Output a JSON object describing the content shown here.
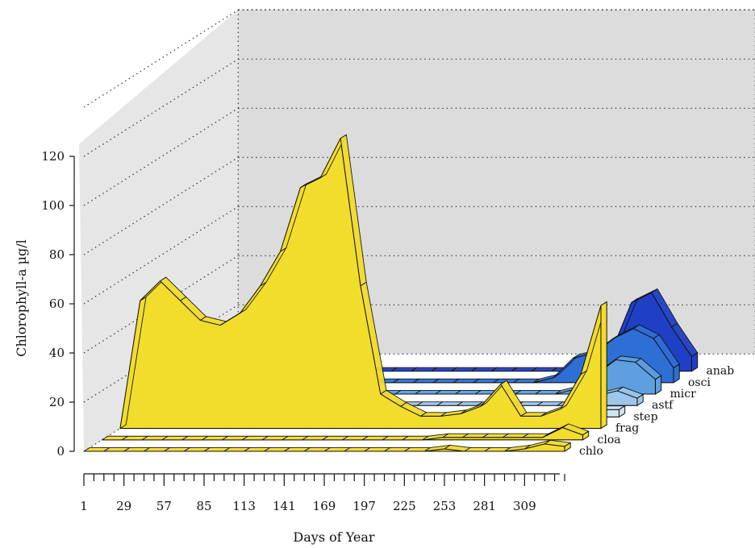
{
  "chart_data": {
    "type": "area",
    "render": "3d-ribbon",
    "title": "",
    "xlabel": "Days of Year",
    "ylabel": "Chlorophyll-a µg/l",
    "xlim": [
      1,
      337
    ],
    "ylim": [
      0,
      120
    ],
    "y_ticks": [
      0,
      20,
      40,
      60,
      80,
      100,
      120
    ],
    "x_ticks": [
      1,
      29,
      57,
      85,
      113,
      141,
      169,
      197,
      225,
      253,
      281,
      309
    ],
    "x_minor_step": 7,
    "grid": true,
    "legend": "labels at right end of each ribbon",
    "x": [
      1,
      15,
      29,
      43,
      57,
      71,
      85,
      99,
      113,
      127,
      141,
      155,
      169,
      183,
      197,
      211,
      225,
      239,
      253,
      267,
      281,
      295,
      309,
      323,
      337
    ],
    "series": [
      {
        "name": "chlo",
        "color": "#f2dc2c",
        "values": [
          0,
          0,
          0,
          0,
          0,
          0,
          0,
          0,
          0,
          0,
          0,
          0,
          0,
          0,
          0,
          0,
          0,
          0,
          1,
          0,
          0,
          0,
          1,
          3,
          2
        ]
      },
      {
        "name": "cloa",
        "color": "#f2dc2c",
        "values": [
          0,
          0,
          0,
          0,
          0,
          0,
          0,
          0,
          0,
          0,
          0,
          0,
          0,
          0,
          0,
          0,
          0,
          1,
          1,
          1,
          1,
          1,
          1,
          5,
          2
        ]
      },
      {
        "name": "frag",
        "color": "#f2dc2c",
        "values": [
          0,
          52,
          60,
          52,
          44,
          42,
          47,
          58,
          72,
          98,
          102,
          118,
          58,
          14,
          9,
          5,
          5,
          6,
          9,
          18,
          5,
          5,
          8,
          22,
          50
        ]
      },
      {
        "name": "step",
        "color": "#cfe4f5",
        "values": [
          0,
          0,
          0,
          0,
          0,
          0,
          0,
          0,
          0,
          0,
          0,
          0,
          0,
          0,
          0,
          0,
          0,
          0,
          0,
          0,
          0,
          0,
          1,
          3,
          3
        ]
      },
      {
        "name": "astf",
        "color": "#9cc6ec",
        "values": [
          0,
          0,
          0,
          0,
          0,
          0,
          0,
          0,
          0,
          0,
          0,
          0,
          0,
          0,
          0,
          0,
          0,
          0,
          0,
          0,
          0,
          0,
          4,
          6,
          3
        ]
      },
      {
        "name": "micr",
        "color": "#5d9fe0",
        "values": [
          0,
          0,
          0,
          0,
          0,
          0,
          0,
          0,
          0,
          0,
          0,
          0,
          0,
          0,
          0,
          0,
          0,
          0,
          0,
          0,
          2,
          8,
          14,
          13,
          6
        ]
      },
      {
        "name": "osci",
        "color": "#2e6fd6",
        "values": [
          0,
          0,
          0,
          0,
          0,
          0,
          0,
          0,
          0,
          0,
          0,
          0,
          0,
          0,
          0,
          0,
          0,
          0,
          2,
          10,
          12,
          18,
          22,
          18,
          6
        ]
      },
      {
        "name": "anab",
        "color": "#1f3fc4",
        "values": [
          0,
          0,
          0,
          0,
          0,
          0,
          0,
          0,
          0,
          0,
          0,
          0,
          0,
          0,
          0,
          0,
          0,
          0,
          0,
          2,
          8,
          28,
          32,
          18,
          6
        ]
      }
    ]
  }
}
